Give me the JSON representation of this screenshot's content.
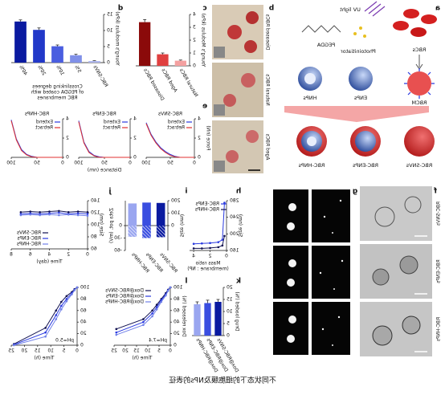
{
  "figure": {
    "caption": "不同状态下的细胞膜及NPs的表征",
    "panel_labels": [
      "a",
      "b",
      "c",
      "d",
      "e",
      "f",
      "g",
      "h",
      "i",
      "j",
      "k",
      "l"
    ],
    "schematic": {
      "rbcs": "RBCs",
      "uv": "UV light",
      "pegda": "PEGDA",
      "photoinitiator": "Photoinitiator",
      "rbcm": "RBCM",
      "enps": "ENPs",
      "hnps": "HNPs",
      "products": [
        "RBC-SNVs",
        "RBC-ENPs",
        "RBC-HNPs"
      ]
    },
    "photo_labels": [
      "Diseased RBCs",
      "Natural RBCs",
      "Aged RBCs"
    ],
    "tem_labels": [
      "RBC-SNVs",
      "RBC-ENPs",
      "RBC-HNPs"
    ]
  },
  "chart_data": [
    {
      "type": "bar",
      "ylabel": "Young's Modulus (kPa)",
      "categories": [
        "Natural RBCs",
        "Aged RBCs",
        "Diseased RBCs"
      ],
      "values": [
        0.4,
        0.9,
        3.4
      ],
      "errors": [
        0.05,
        0.1,
        0.2
      ],
      "colors": [
        "#f4a0a0",
        "#e04040",
        "#8b0a0a"
      ],
      "ylim": [
        0,
        4
      ],
      "yticks": [
        0,
        1,
        2,
        3,
        4
      ]
    },
    {
      "type": "bar",
      "ylabel": "Young's modulus (kPa)",
      "xlabel_lines": [
        "Crosslinking degrees",
        "of PEGDA coated with",
        "RBC membranes"
      ],
      "categories": [
        "RBC-SNVs",
        "5%",
        "10%",
        "20%",
        "40%"
      ],
      "values": [
        0.5,
        2.3,
        5.1,
        10.2,
        12.8
      ],
      "errors": [
        0.1,
        0.3,
        0.4,
        0.6,
        0.5
      ],
      "colors": [
        "#b0b8f0",
        "#8090e8",
        "#4a5ee0",
        "#2238c8",
        "#0a1aa0"
      ],
      "ylim": [
        0,
        15
      ],
      "yticks": [
        0,
        5,
        10,
        15
      ]
    },
    {
      "type": "line",
      "title": "RBC-SNVs",
      "ylabel": "Force (nN)",
      "legend": "upper left",
      "x": [
        0,
        10,
        20,
        30,
        40,
        50,
        60,
        70,
        80,
        90,
        100
      ],
      "xlim": [
        0,
        100
      ],
      "xticks": [
        0,
        50,
        100
      ],
      "ylim": [
        0,
        4
      ],
      "yticks": [
        0,
        2,
        4
      ],
      "series": [
        {
          "name": "Extend",
          "color": "#2a3adf",
          "values": [
            0,
            0,
            0,
            0,
            0.1,
            0.3,
            0.6,
            1.0,
            1.6,
            2.4,
            3.6
          ]
        },
        {
          "name": "Retract",
          "color": "#e03030",
          "values": [
            0,
            0,
            0,
            0,
            0.05,
            0.2,
            0.5,
            0.9,
            1.5,
            2.3,
            3.5
          ]
        }
      ]
    },
    {
      "type": "line",
      "title": "RBC-ENPs",
      "xlabel": "Distance (nm)",
      "legend": "upper left",
      "x": [
        0,
        10,
        20,
        30,
        40,
        50,
        60,
        70,
        80,
        90,
        100
      ],
      "xlim": [
        0,
        100
      ],
      "xticks": [
        0,
        50,
        100
      ],
      "ylim": [
        0,
        4
      ],
      "yticks": [
        0,
        2,
        4
      ],
      "series": [
        {
          "name": "Extend",
          "color": "#2a3adf",
          "values": [
            0,
            0,
            0,
            0,
            0,
            0,
            0.05,
            0.2,
            0.6,
            1.6,
            3.8
          ]
        },
        {
          "name": "Retract",
          "color": "#e03030",
          "values": [
            0,
            0,
            0,
            0,
            0,
            0,
            0,
            0.15,
            0.5,
            1.5,
            3.7
          ]
        }
      ]
    },
    {
      "type": "line",
      "title": "RBC-HNPs",
      "legend": "upper left",
      "x": [
        0,
        10,
        20,
        30,
        40,
        50,
        60,
        70,
        80,
        90,
        100
      ],
      "xlim": [
        0,
        100
      ],
      "xticks": [
        0,
        50,
        100
      ],
      "ylim": [
        0,
        4
      ],
      "yticks": [
        0,
        2,
        4
      ],
      "series": [
        {
          "name": "Extend",
          "color": "#2a3adf",
          "values": [
            0,
            0,
            0,
            0,
            0,
            0,
            0.1,
            0.3,
            0.8,
            1.9,
            3.9
          ]
        },
        {
          "name": "Retract",
          "color": "#e03030",
          "values": [
            0,
            0,
            0,
            0,
            0,
            0,
            0.05,
            0.25,
            0.7,
            1.8,
            3.8
          ]
        }
      ]
    },
    {
      "type": "line",
      "markers": true,
      "ylabel": "Size (nm)",
      "xlabel_lines": [
        "Mass ratio",
        "(membrane : NP)"
      ],
      "legend": "upper right",
      "x": [
        0.25,
        0.5,
        1,
        2,
        3,
        4
      ],
      "xlim": [
        0,
        4.5
      ],
      "xticks": [
        0,
        2,
        4
      ],
      "ylim": [
        160,
        280
      ],
      "yticks": [
        160,
        200,
        240,
        280
      ],
      "series": [
        {
          "name": "RBC-ENPs",
          "color": "#2a3adf",
          "values": [
            275,
            186,
            180,
            178,
            177,
            176
          ]
        },
        {
          "name": "RBC-HNPs",
          "color": "#101050",
          "values": [
            195,
            172,
            168,
            166,
            165,
            165
          ]
        }
      ]
    },
    {
      "type": "dual_bar",
      "ylabel": "Size (nm)",
      "y2label": "Zeta pot. (mV)",
      "categories": [
        "RBC-SNVs",
        "RBC-ENPs",
        "RBC-HNPs"
      ],
      "colors": [
        "#0a1aa0",
        "#3a4ee0",
        "#9aa6f0"
      ],
      "ylim": [
        -200,
        200
      ],
      "yticks": [
        0,
        100,
        200
      ],
      "y2lim": [
        -60,
        60
      ],
      "y2ticks": [
        -60,
        -30,
        0
      ],
      "series": [
        {
          "values": [
            182,
            185,
            178
          ]
        },
        {
          "axis": "y2",
          "values": [
            -28,
            -30,
            -27
          ]
        }
      ]
    },
    {
      "type": "line",
      "markers": true,
      "ylabel": "Size (nm)",
      "xlabel": "Time (day)",
      "legend": "lower right",
      "x": [
        0,
        1,
        2,
        3,
        4,
        5,
        6,
        7
      ],
      "xlim": [
        0,
        8
      ],
      "xticks": [
        0,
        2,
        4,
        6,
        8
      ],
      "ylim": [
        60,
        140
      ],
      "yticks": [
        60,
        80,
        100,
        120,
        140
      ],
      "series": [
        {
          "name": "RBC-SNVs",
          "color": "#101050",
          "values": [
            121,
            122,
            121,
            123,
            122,
            121,
            122,
            121
          ]
        },
        {
          "name": "RBC-ENPs",
          "color": "#2a3adf",
          "values": [
            118,
            119,
            118,
            120,
            119,
            118,
            119,
            118
          ]
        },
        {
          "name": "RBC-HNPs",
          "color": "#7080e8",
          "values": [
            115,
            116,
            117,
            116,
            117,
            116,
            117,
            116
          ]
        }
      ]
    },
    {
      "type": "bar",
      "ylabel": "Drug loaded (%)",
      "categories": [
        "Dox@RBC-SNVs",
        "Dox@RBC-ENPs",
        "Dox@RBC-HNPs"
      ],
      "values": [
        14,
        13.5,
        13
      ],
      "errors": [
        1,
        1.2,
        1
      ],
      "colors": [
        "#0a1aa0",
        "#3a4ee0",
        "#9aa6f0"
      ],
      "ylim": [
        0,
        20
      ],
      "yticks": [
        0,
        5,
        10,
        15,
        20
      ]
    },
    {
      "type": "line",
      "markers": true,
      "ylabel": "Dox released (%)",
      "xlabel": "Time (h)",
      "annotation": "pH=7.4",
      "legend": "upper right",
      "x": [
        0,
        1,
        2,
        4,
        6,
        8,
        12,
        24
      ],
      "xlim": [
        0,
        25
      ],
      "xticks": [
        0,
        5,
        10,
        15,
        20,
        25
      ],
      "ylim": [
        0,
        100
      ],
      "yticks": [
        0,
        20,
        40,
        60,
        80,
        100
      ],
      "series": [
        {
          "name": "Dox@RBC-SNVs",
          "color": "#101050",
          "values": [
            100,
            96,
            90,
            80,
            70,
            60,
            45,
            28
          ]
        },
        {
          "name": "Dox@RBC-ENPs",
          "color": "#2a3adf",
          "values": [
            100,
            95,
            88,
            78,
            66,
            55,
            40,
            22
          ]
        },
        {
          "name": "Dox@RBC-HNPs",
          "color": "#7080e8",
          "values": [
            100,
            94,
            86,
            75,
            62,
            50,
            35,
            18
          ]
        }
      ]
    },
    {
      "type": "line",
      "markers": true,
      "xlabel": "Time (h)",
      "annotation": "pH=5.0",
      "x": [
        0,
        1,
        2,
        4,
        6,
        8,
        12,
        24
      ],
      "xlim": [
        0,
        25
      ],
      "xticks": [
        0,
        5,
        10,
        15,
        20,
        25
      ],
      "ylim": [
        0,
        100
      ],
      "yticks": [
        0,
        20,
        40,
        60,
        80,
        100
      ],
      "series": [
        {
          "name": "Dox@RBC-SNVs",
          "color": "#101050",
          "values": [
            100,
            97,
            92,
            85,
            75,
            60,
            30,
            2
          ]
        },
        {
          "name": "Dox@RBC-ENPs",
          "color": "#2a3adf",
          "values": [
            100,
            96,
            90,
            80,
            68,
            52,
            22,
            1
          ]
        },
        {
          "name": "Dox@RBC-HNPs",
          "color": "#7080e8",
          "values": [
            100,
            95,
            88,
            76,
            62,
            45,
            15,
            0
          ]
        }
      ]
    }
  ]
}
